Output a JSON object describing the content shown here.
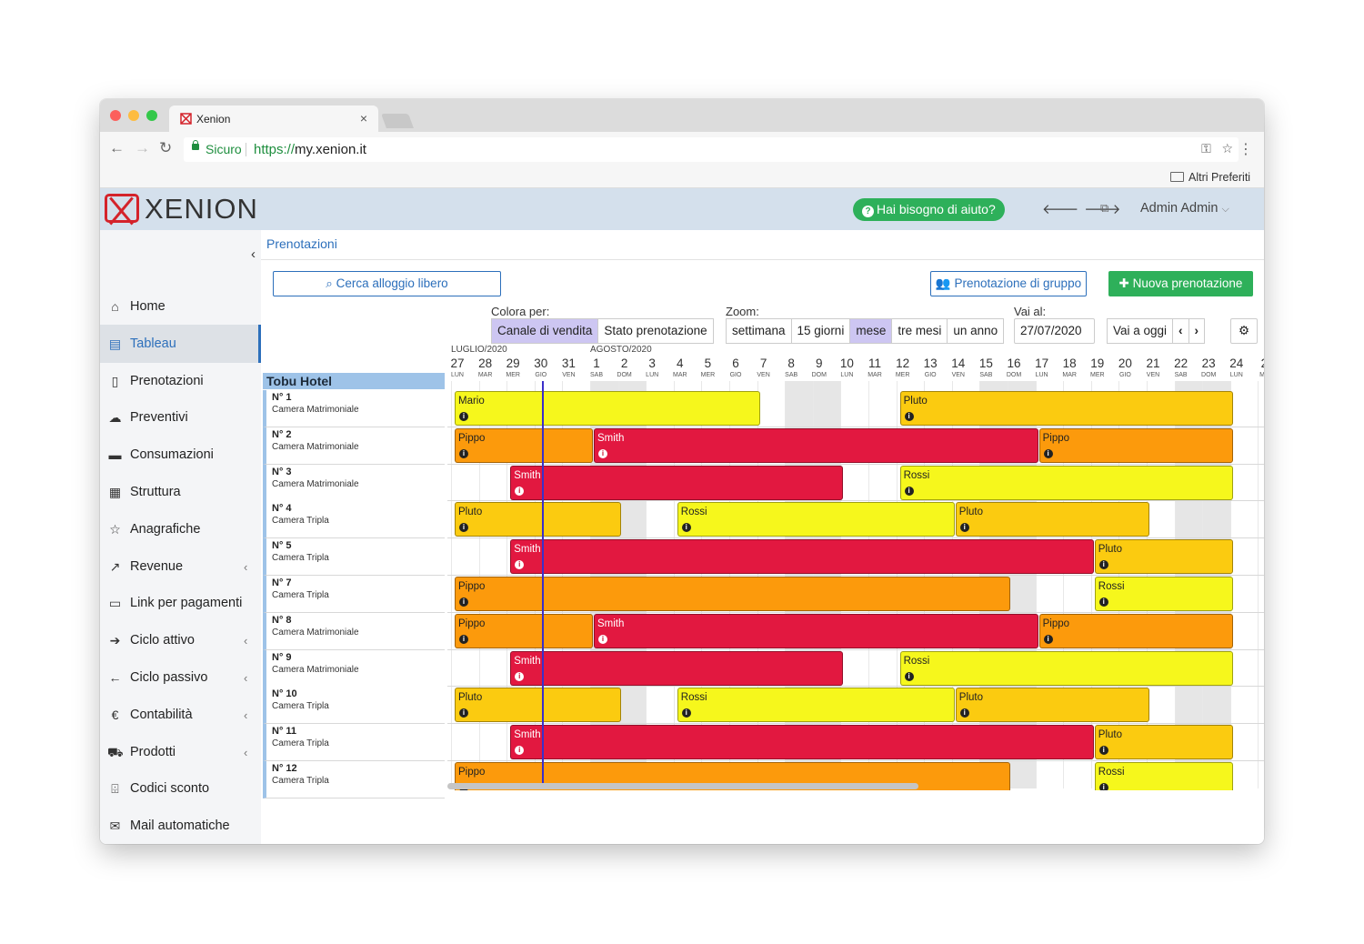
{
  "browser": {
    "tab_title": "Xenion",
    "secure_label": "Sicuro",
    "url_scheme": "https://",
    "url_host": "my.xenion.it",
    "bookmarks_label": "Altri Preferiti"
  },
  "header": {
    "logo_text": "XENION",
    "help_label": "Hai bisogno di aiuto?",
    "user_name": "Admin Admin"
  },
  "sidebar": {
    "items": [
      {
        "label": "Home",
        "icon": "home-icon",
        "glyph": "⌂",
        "chev": false
      },
      {
        "label": "Tableau",
        "icon": "calendar-icon",
        "glyph": "▤",
        "chev": false,
        "active": true
      },
      {
        "label": "Prenotazioni",
        "icon": "file-icon",
        "glyph": "▯",
        "chev": false
      },
      {
        "label": "Preventivi",
        "icon": "comments-icon",
        "glyph": "☁",
        "chev": false
      },
      {
        "label": "Consumazioni",
        "icon": "coffee-icon",
        "glyph": "▬",
        "chev": false
      },
      {
        "label": "Struttura",
        "icon": "building-icon",
        "glyph": "▦",
        "chev": false
      },
      {
        "label": "Anagrafiche",
        "icon": "star-icon",
        "glyph": "☆",
        "chev": false
      },
      {
        "label": "Revenue",
        "icon": "line-chart-icon",
        "glyph": "↗",
        "chev": true
      },
      {
        "label": "Link per pagamenti",
        "icon": "credit-card-icon",
        "glyph": "▭",
        "chev": false
      },
      {
        "label": "Ciclo attivo",
        "icon": "arrow-right-icon",
        "glyph": "➔",
        "chev": true
      },
      {
        "label": "Ciclo passivo",
        "icon": "arrow-left-icon",
        "glyph": "←",
        "chev": true
      },
      {
        "label": "Contabilità",
        "icon": "euro-icon",
        "glyph": "€",
        "chev": true
      },
      {
        "label": "Prodotti",
        "icon": "cart-icon",
        "glyph": "⛟",
        "chev": true
      },
      {
        "label": "Codici sconto",
        "icon": "gift-icon",
        "glyph": "⌹",
        "chev": false
      },
      {
        "label": "Mail automatiche",
        "icon": "envelope-icon",
        "glyph": "✉",
        "chev": false
      }
    ]
  },
  "main": {
    "breadcrumb": "Prenotazioni",
    "search_btn": "Cerca alloggio libero",
    "group_btn": "Prenotazione di gruppo",
    "new_btn": "Nuova prenotazione",
    "color_by_label": "Colora per:",
    "color_by_options": [
      "Canale di vendita",
      "Stato prenotazione"
    ],
    "zoom_label": "Zoom:",
    "zoom_options": [
      "settimana",
      "15 giorni",
      "mese",
      "tre mesi",
      "un anno"
    ],
    "goto_label": "Vai al:",
    "goto_value": "27/07/2020",
    "today_btn": "Vai a oggi"
  },
  "timeline": {
    "months": [
      {
        "label": "LUGLIO/2020",
        "start_index": 0
      },
      {
        "label": "AGOSTO/2020",
        "start_index": 5
      }
    ],
    "days": [
      {
        "n": "27",
        "wd": "LUN"
      },
      {
        "n": "28",
        "wd": "MAR"
      },
      {
        "n": "29",
        "wd": "MER"
      },
      {
        "n": "30",
        "wd": "GIO"
      },
      {
        "n": "31",
        "wd": "VEN"
      },
      {
        "n": "1",
        "wd": "SAB"
      },
      {
        "n": "2",
        "wd": "DOM"
      },
      {
        "n": "3",
        "wd": "LUN"
      },
      {
        "n": "4",
        "wd": "MAR"
      },
      {
        "n": "5",
        "wd": "MER"
      },
      {
        "n": "6",
        "wd": "GIO"
      },
      {
        "n": "7",
        "wd": "VEN"
      },
      {
        "n": "8",
        "wd": "SAB"
      },
      {
        "n": "9",
        "wd": "DOM"
      },
      {
        "n": "10",
        "wd": "LUN"
      },
      {
        "n": "11",
        "wd": "MAR"
      },
      {
        "n": "12",
        "wd": "MER"
      },
      {
        "n": "13",
        "wd": "GIO"
      },
      {
        "n": "14",
        "wd": "VEN"
      },
      {
        "n": "15",
        "wd": "SAB"
      },
      {
        "n": "16",
        "wd": "DOM"
      },
      {
        "n": "17",
        "wd": "LUN"
      },
      {
        "n": "18",
        "wd": "MAR"
      },
      {
        "n": "19",
        "wd": "MER"
      },
      {
        "n": "20",
        "wd": "GIO"
      },
      {
        "n": "21",
        "wd": "VEN"
      },
      {
        "n": "22",
        "wd": "SAB"
      },
      {
        "n": "23",
        "wd": "DOM"
      },
      {
        "n": "24",
        "wd": "LUN"
      },
      {
        "n": "2",
        "wd": "MA"
      }
    ],
    "today_index": 3,
    "colors": {
      "yellow": "#f6f71c",
      "gold": "#fbcb10",
      "orange": "#fc9a0c",
      "red": "#e21840"
    },
    "hotel": "Tobu Hotel",
    "rooms": [
      {
        "name": "N° 1",
        "type": "Camera Matrimoniale",
        "bookings": [
          {
            "guest": "Mario",
            "start": 0,
            "end": 11,
            "color": "yellow"
          },
          {
            "guest": "Pluto",
            "start": 16,
            "end": 28,
            "color": "gold"
          }
        ]
      },
      {
        "name": "N° 2",
        "type": "Camera Matrimoniale",
        "bookings": [
          {
            "guest": "Pippo",
            "start": 0,
            "end": 5,
            "color": "orange"
          },
          {
            "guest": "Smith",
            "start": 5,
            "end": 21,
            "color": "red"
          },
          {
            "guest": "Pippo",
            "start": 21,
            "end": 28,
            "color": "orange"
          }
        ]
      },
      {
        "name": "N° 3",
        "type": "Camera Matrimoniale",
        "bookings": [
          {
            "guest": "Smith",
            "start": 2,
            "end": 14,
            "color": "red"
          },
          {
            "guest": "Rossi",
            "start": 16,
            "end": 28,
            "color": "yellow"
          }
        ]
      },
      {
        "name": "N° 4",
        "type": "Camera Tripla",
        "bookings": [
          {
            "guest": "Pluto",
            "start": 0,
            "end": 6,
            "color": "gold"
          },
          {
            "guest": "Rossi",
            "start": 8,
            "end": 18,
            "color": "yellow"
          },
          {
            "guest": "Pluto",
            "start": 18,
            "end": 25,
            "color": "gold"
          }
        ]
      },
      {
        "name": "N° 5",
        "type": "Camera Tripla",
        "bookings": [
          {
            "guest": "Smith",
            "start": 2,
            "end": 23,
            "color": "red"
          },
          {
            "guest": "Pluto",
            "start": 23,
            "end": 28,
            "color": "gold"
          }
        ]
      },
      {
        "name": "N° 7",
        "type": "Camera Tripla",
        "bookings": [
          {
            "guest": "Pippo",
            "start": 0,
            "end": 20,
            "color": "orange"
          },
          {
            "guest": "Rossi",
            "start": 23,
            "end": 28,
            "color": "yellow"
          }
        ]
      },
      {
        "name": "N° 8",
        "type": "Camera Matrimoniale",
        "bookings": [
          {
            "guest": "Pippo",
            "start": 0,
            "end": 5,
            "color": "orange"
          },
          {
            "guest": "Smith",
            "start": 5,
            "end": 21,
            "color": "red"
          },
          {
            "guest": "Pippo",
            "start": 21,
            "end": 28,
            "color": "orange"
          }
        ]
      },
      {
        "name": "N° 9",
        "type": "Camera Matrimoniale",
        "bookings": [
          {
            "guest": "Smith",
            "start": 2,
            "end": 14,
            "color": "red"
          },
          {
            "guest": "Rossi",
            "start": 16,
            "end": 28,
            "color": "yellow"
          }
        ]
      },
      {
        "name": "N° 10",
        "type": "Camera Tripla",
        "bookings": [
          {
            "guest": "Pluto",
            "start": 0,
            "end": 6,
            "color": "gold"
          },
          {
            "guest": "Rossi",
            "start": 8,
            "end": 18,
            "color": "yellow"
          },
          {
            "guest": "Pluto",
            "start": 18,
            "end": 25,
            "color": "gold"
          }
        ]
      },
      {
        "name": "N° 11",
        "type": "Camera Tripla",
        "bookings": [
          {
            "guest": "Smith",
            "start": 2,
            "end": 23,
            "color": "red"
          },
          {
            "guest": "Pluto",
            "start": 23,
            "end": 28,
            "color": "gold"
          }
        ]
      },
      {
        "name": "N° 12",
        "type": "Camera Tripla",
        "bookings": [
          {
            "guest": "Pippo",
            "start": 0,
            "end": 20,
            "color": "orange"
          },
          {
            "guest": "Rossi",
            "start": 23,
            "end": 28,
            "color": "yellow"
          }
        ]
      }
    ]
  }
}
